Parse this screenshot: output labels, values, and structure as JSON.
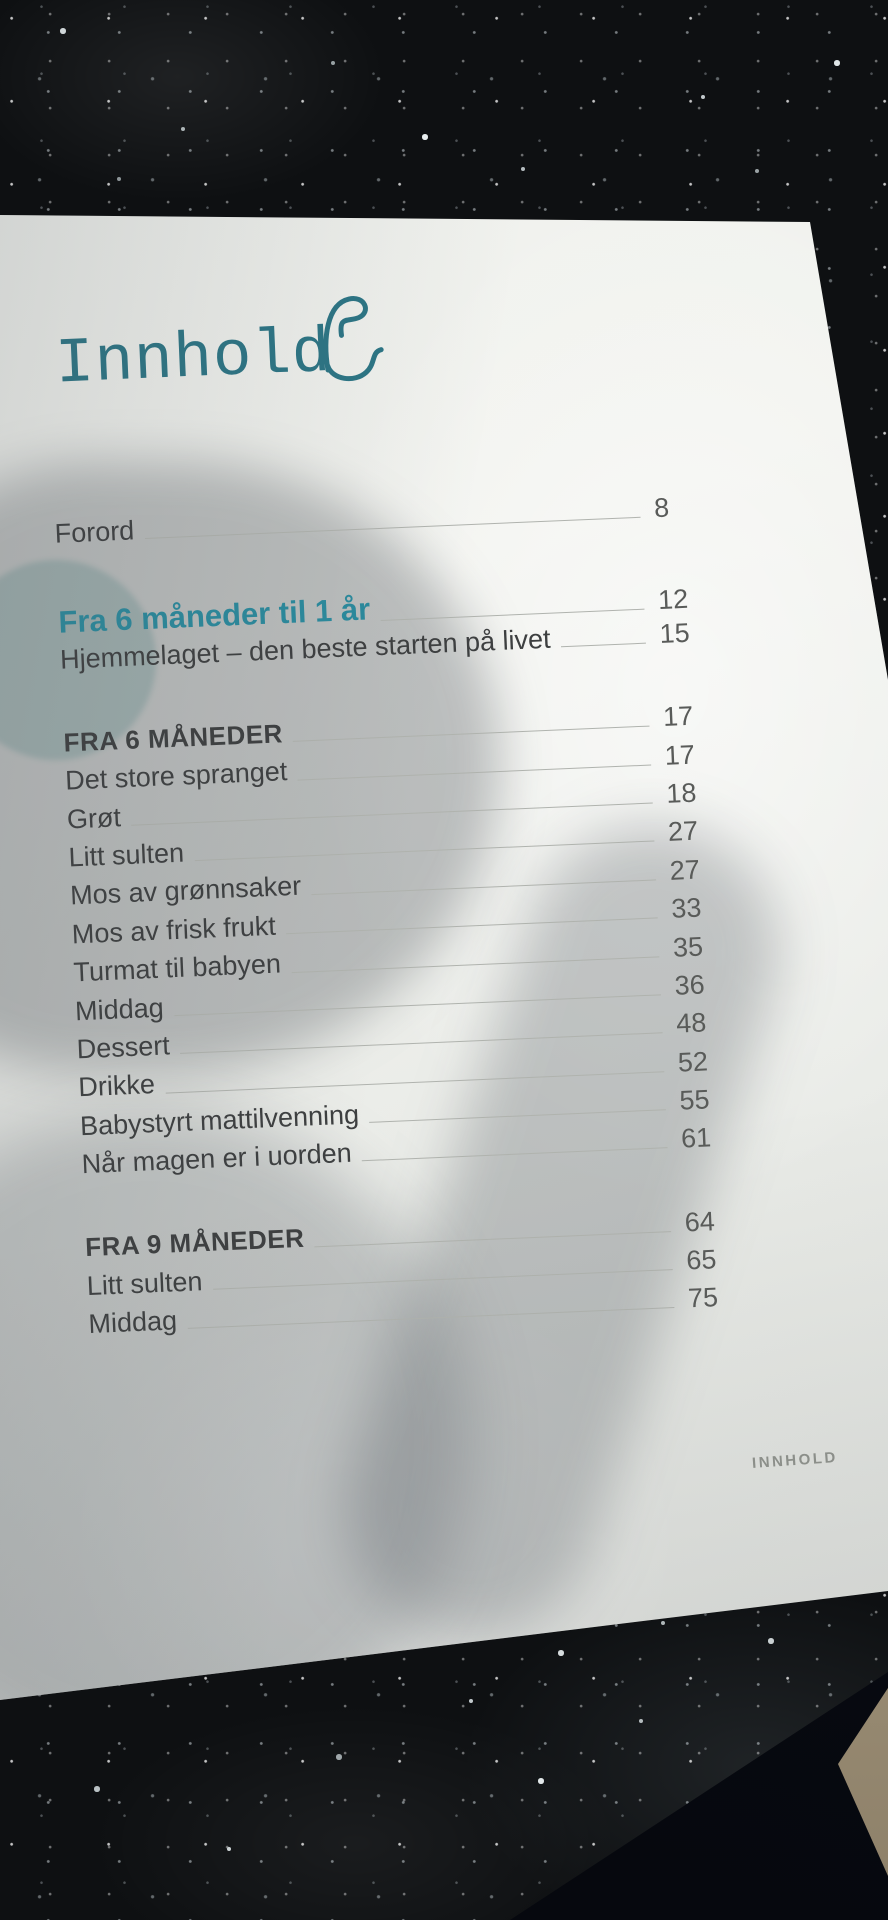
{
  "title": "Innhold",
  "footer_label": "INNHOLD",
  "colors": {
    "title_teal": "#2b7585",
    "heading_teal": "#2a8a9d",
    "text": "#3d3f40",
    "number": "#595b59",
    "leader": "#b0b3ae",
    "footer": "#90938d",
    "paper": "#eef0ec",
    "granite": "#0e1012",
    "accent_circle": "#97c4c0",
    "tan_surface": "#b0a287"
  },
  "toc_rows": [
    {
      "label": "Forord",
      "page": "8",
      "style": "normal"
    },
    {
      "label": "Fra 6 måneder til 1 år",
      "page": "12",
      "style": "teal"
    },
    {
      "label": "Hjemmelaget – den beste starten på livet",
      "page": "15",
      "style": "normal"
    },
    {
      "label": "FRA 6 MÅNEDER",
      "page": "17",
      "style": "section"
    },
    {
      "label": "Det store spranget",
      "page": "17",
      "style": "normal"
    },
    {
      "label": "Grøt",
      "page": "18",
      "style": "normal"
    },
    {
      "label": "Litt sulten",
      "page": "27",
      "style": "normal"
    },
    {
      "label": "Mos av grønnsaker",
      "page": "27",
      "style": "normal"
    },
    {
      "label": "Mos av frisk frukt",
      "page": "33",
      "style": "normal"
    },
    {
      "label": "Turmat til babyen",
      "page": "35",
      "style": "normal"
    },
    {
      "label": "Middag",
      "page": "36",
      "style": "normal"
    },
    {
      "label": "Dessert",
      "page": "48",
      "style": "normal"
    },
    {
      "label": "Drikke",
      "page": "52",
      "style": "normal"
    },
    {
      "label": "Babystyrt mattilvenning",
      "page": "55",
      "style": "normal"
    },
    {
      "label": "Når magen er i uorden",
      "page": "61",
      "style": "normal"
    },
    {
      "label": "FRA 9 MÅNEDER",
      "page": "64",
      "style": "section"
    },
    {
      "label": "Litt sulten",
      "page": "65",
      "style": "normal"
    },
    {
      "label": "Middag",
      "page": "75",
      "style": "normal"
    }
  ]
}
